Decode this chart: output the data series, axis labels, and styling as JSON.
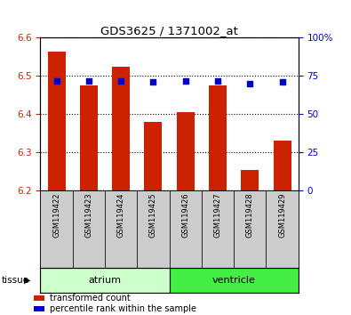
{
  "title": "GDS3625 / 1371002_at",
  "samples": [
    "GSM119422",
    "GSM119423",
    "GSM119424",
    "GSM119425",
    "GSM119426",
    "GSM119427",
    "GSM119428",
    "GSM119429"
  ],
  "red_values": [
    6.565,
    6.475,
    6.525,
    6.38,
    6.405,
    6.475,
    6.255,
    6.33
  ],
  "blue_pct": [
    72,
    72,
    72,
    71,
    72,
    72,
    70,
    71
  ],
  "ylim_left": [
    6.2,
    6.6
  ],
  "ylim_right": [
    0,
    100
  ],
  "yticks_left": [
    6.2,
    6.3,
    6.4,
    6.5,
    6.6
  ],
  "yticks_right": [
    0,
    25,
    50,
    75,
    100
  ],
  "bar_width": 0.55,
  "bar_color": "#cc2200",
  "dot_color": "#0000cc",
  "tissue_groups": [
    {
      "label": "atrium",
      "start": 0,
      "end": 3,
      "color": "#ccffcc"
    },
    {
      "label": "ventricle",
      "start": 4,
      "end": 7,
      "color": "#44ee44"
    }
  ],
  "tissue_label": "tissue",
  "legend_items": [
    {
      "color": "#cc2200",
      "label": "transformed count"
    },
    {
      "color": "#0000cc",
      "label": "percentile rank within the sample"
    }
  ],
  "tick_color_left": "#cc2200",
  "tick_color_right": "#0000cc",
  "base_value": 6.2,
  "sample_box_color": "#cccccc",
  "dot_size": 18
}
